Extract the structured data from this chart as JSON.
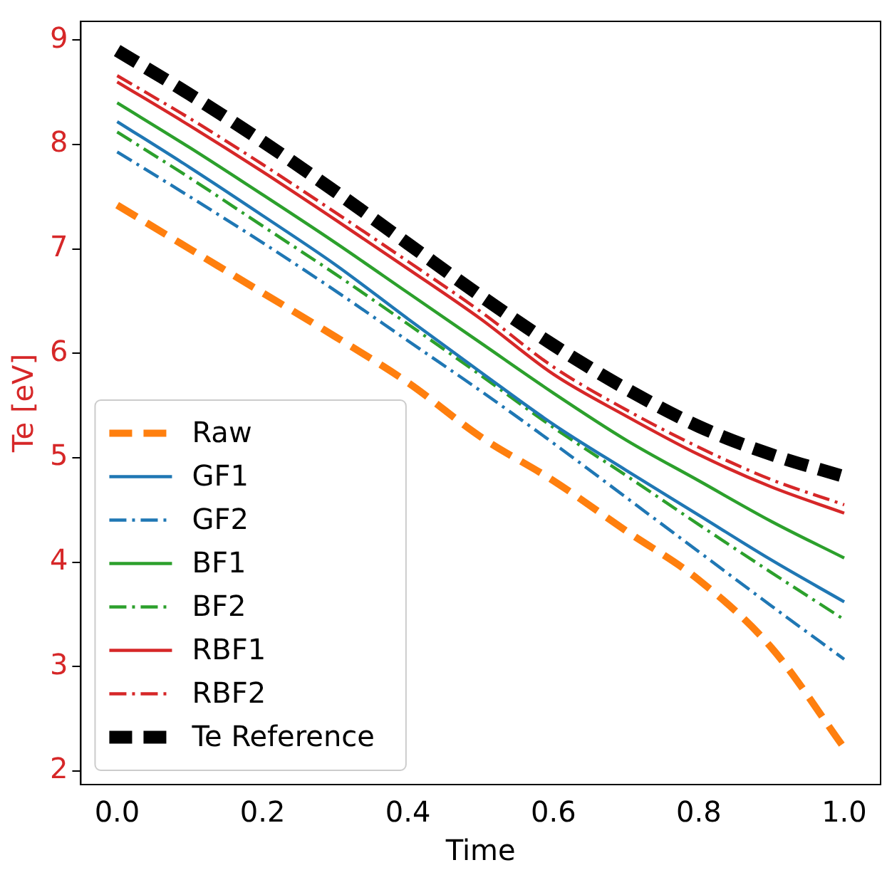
{
  "chart_data": {
    "type": "line",
    "xlabel": "Time",
    "ylabel": "Te [eV]",
    "x": [
      0,
      0.1,
      0.2,
      0.3,
      0.4,
      0.5,
      0.6,
      0.7,
      0.8,
      0.9,
      1.0
    ],
    "xlim": [
      -0.05,
      1.05
    ],
    "ylim": [
      1.87,
      9.18
    ],
    "xticks": [
      {
        "value": 0,
        "label": "0.0"
      },
      {
        "value": 0.2,
        "label": "0.2"
      },
      {
        "value": 0.4,
        "label": "0.4"
      },
      {
        "value": 0.6,
        "label": "0.6"
      },
      {
        "value": 0.8,
        "label": "0.8"
      },
      {
        "value": 1,
        "label": "1.0"
      }
    ],
    "yticks": [
      2,
      3,
      4,
      5,
      6,
      7,
      8,
      9
    ],
    "grid": false,
    "legend": "bottom left",
    "marker": "none",
    "series": [
      {
        "name": "Raw",
        "color": "#ff7f0e",
        "line_style": "dashed",
        "values": [
          7.42,
          7.0,
          6.58,
          6.16,
          5.72,
          5.2,
          4.78,
          4.3,
          3.83,
          3.18,
          2.22
        ]
      },
      {
        "name": "GF1",
        "color": "#1f77b4",
        "line_style": "solid",
        "values": [
          8.22,
          7.78,
          7.32,
          6.85,
          6.33,
          5.82,
          5.32,
          4.88,
          4.45,
          4.02,
          3.62
        ]
      },
      {
        "name": "GF2",
        "color": "#1f77b4",
        "line_style": "dashdot",
        "values": [
          7.93,
          7.5,
          7.06,
          6.6,
          6.12,
          5.64,
          5.14,
          4.62,
          4.1,
          3.58,
          3.07
        ]
      },
      {
        "name": "BF1",
        "color": "#2ca02c",
        "line_style": "solid",
        "values": [
          8.4,
          7.97,
          7.52,
          7.06,
          6.58,
          6.1,
          5.62,
          5.17,
          4.78,
          4.39,
          4.04
        ]
      },
      {
        "name": "BF2",
        "color": "#2ca02c",
        "line_style": "dashdot",
        "values": [
          8.12,
          7.68,
          7.22,
          6.76,
          6.28,
          5.79,
          5.29,
          4.83,
          4.36,
          3.9,
          3.45
        ]
      },
      {
        "name": "RBF1",
        "color": "#d62728",
        "line_style": "solid",
        "values": [
          8.6,
          8.18,
          7.74,
          7.28,
          6.81,
          6.33,
          5.8,
          5.4,
          5.03,
          4.72,
          4.47
        ]
      },
      {
        "name": "RBF2",
        "color": "#d62728",
        "line_style": "dashdot",
        "values": [
          8.66,
          8.25,
          7.81,
          7.35,
          6.88,
          6.4,
          5.87,
          5.46,
          5.1,
          4.79,
          4.55
        ]
      },
      {
        "name": "Te Reference",
        "color": "#000000",
        "line_style": "dashed",
        "values": [
          8.9,
          8.48,
          8.03,
          7.55,
          7.05,
          6.55,
          6.08,
          5.66,
          5.3,
          5.03,
          4.82
        ]
      }
    ]
  }
}
